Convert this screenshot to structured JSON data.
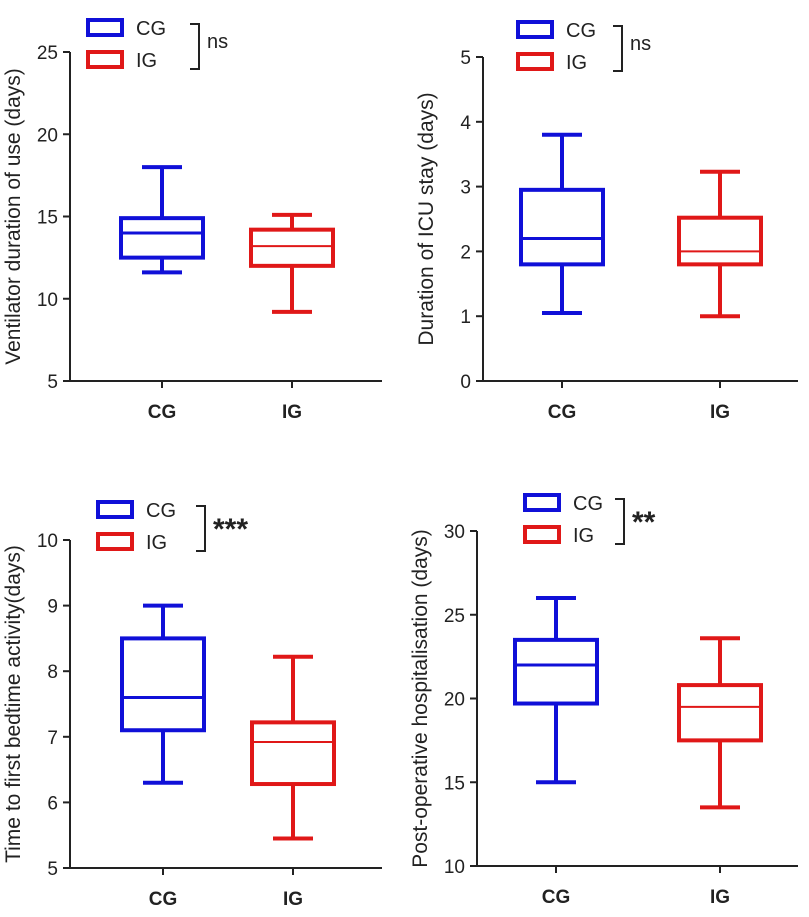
{
  "colors": {
    "cg": "#1010d8",
    "ig": "#e01818",
    "axis": "#222222"
  },
  "chart_data": [
    {
      "type": "boxplot",
      "ylabel": "Ventilator duration of use (days)",
      "ylim": [
        5,
        25
      ],
      "yticks": [
        5,
        10,
        15,
        20,
        25
      ],
      "categories": [
        "CG",
        "IG"
      ],
      "legend": [
        "CG",
        "IG"
      ],
      "legend_position": "top-center",
      "significance": "ns",
      "boxes": [
        {
          "name": "CG",
          "min": 11.6,
          "q1": 12.5,
          "median": 14.0,
          "q3": 14.9,
          "max": 18.0
        },
        {
          "name": "IG",
          "min": 9.2,
          "q1": 12.0,
          "median": 13.2,
          "q3": 14.2,
          "max": 15.1
        }
      ]
    },
    {
      "type": "boxplot",
      "ylabel": "Duration of ICU stay (days)",
      "ylim": [
        0,
        5
      ],
      "yticks": [
        0,
        1,
        2,
        3,
        4,
        5
      ],
      "categories": [
        "CG",
        "IG"
      ],
      "legend": [
        "CG",
        "IG"
      ],
      "legend_position": "top-center",
      "significance": "ns",
      "boxes": [
        {
          "name": "CG",
          "min": 1.05,
          "q1": 1.8,
          "median": 2.2,
          "q3": 2.95,
          "max": 3.8
        },
        {
          "name": "IG",
          "min": 1.0,
          "q1": 1.8,
          "median": 2.0,
          "q3": 2.52,
          "max": 3.23
        }
      ]
    },
    {
      "type": "boxplot",
      "ylabel": "Time to first bedtime activity(days)",
      "ylim": [
        5,
        10
      ],
      "yticks": [
        5,
        6,
        7,
        8,
        9,
        10
      ],
      "categories": [
        "CG",
        "IG"
      ],
      "legend": [
        "CG",
        "IG"
      ],
      "legend_position": "top-center",
      "significance": "***",
      "boxes": [
        {
          "name": "CG",
          "min": 6.3,
          "q1": 7.1,
          "median": 7.6,
          "q3": 8.5,
          "max": 9.0
        },
        {
          "name": "IG",
          "min": 5.45,
          "q1": 6.28,
          "median": 6.92,
          "q3": 7.22,
          "max": 8.22
        }
      ]
    },
    {
      "type": "boxplot",
      "ylabel": "Post-operative hospitalisation (days)",
      "ylim": [
        10,
        30
      ],
      "yticks": [
        10,
        15,
        20,
        25,
        30
      ],
      "categories": [
        "CG",
        "IG"
      ],
      "legend": [
        "CG",
        "IG"
      ],
      "legend_position": "top-center",
      "significance": "**",
      "boxes": [
        {
          "name": "CG",
          "min": 15.0,
          "q1": 19.7,
          "median": 22.0,
          "q3": 23.5,
          "max": 26.0
        },
        {
          "name": "IG",
          "min": 13.5,
          "q1": 17.5,
          "median": 19.5,
          "q3": 20.8,
          "max": 23.6
        }
      ]
    }
  ]
}
